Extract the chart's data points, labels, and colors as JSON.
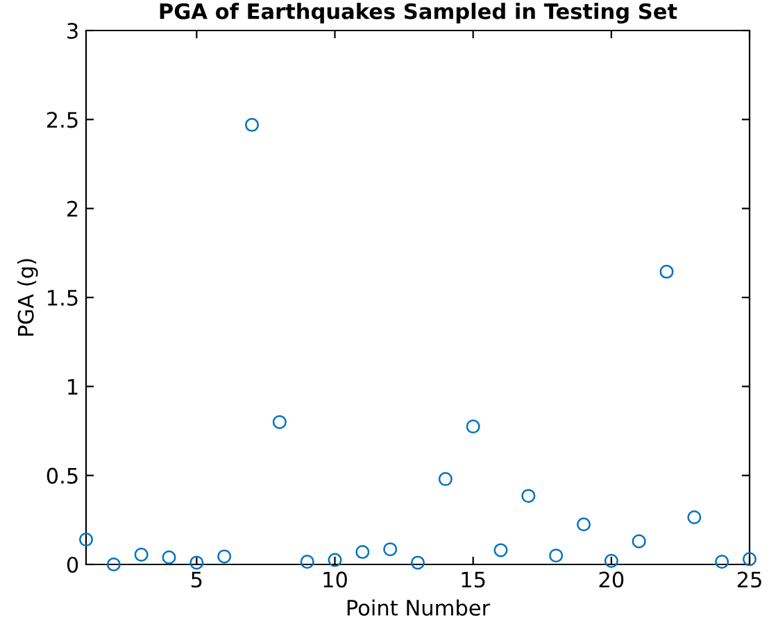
{
  "chart_data": {
    "type": "scatter",
    "title": "PGA of Earthquakes Sampled in Testing Set",
    "xlabel": "Point Number",
    "ylabel": "PGA (g)",
    "x": [
      1,
      2,
      3,
      4,
      5,
      6,
      7,
      8,
      9,
      10,
      11,
      12,
      13,
      14,
      15,
      16,
      17,
      18,
      19,
      20,
      21,
      22,
      23,
      24,
      25
    ],
    "series": [
      {
        "color": "#0072bd",
        "values": [
          0.14,
          0.0,
          0.055,
          0.04,
          0.01,
          0.045,
          2.47,
          0.8,
          0.015,
          0.025,
          0.07,
          0.085,
          0.01,
          0.48,
          0.775,
          0.08,
          0.385,
          0.05,
          0.225,
          0.02,
          0.13,
          1.645,
          0.265,
          0.015,
          0.03
        ]
      }
    ],
    "xlim": [
      1,
      25
    ],
    "xticks": [
      5,
      10,
      15,
      20,
      25
    ],
    "ylim": [
      0,
      3
    ],
    "yticks": [
      0,
      0.5,
      1,
      1.5,
      2,
      2.5,
      3
    ],
    "marker": "circle",
    "grid": false,
    "legend": false
  }
}
